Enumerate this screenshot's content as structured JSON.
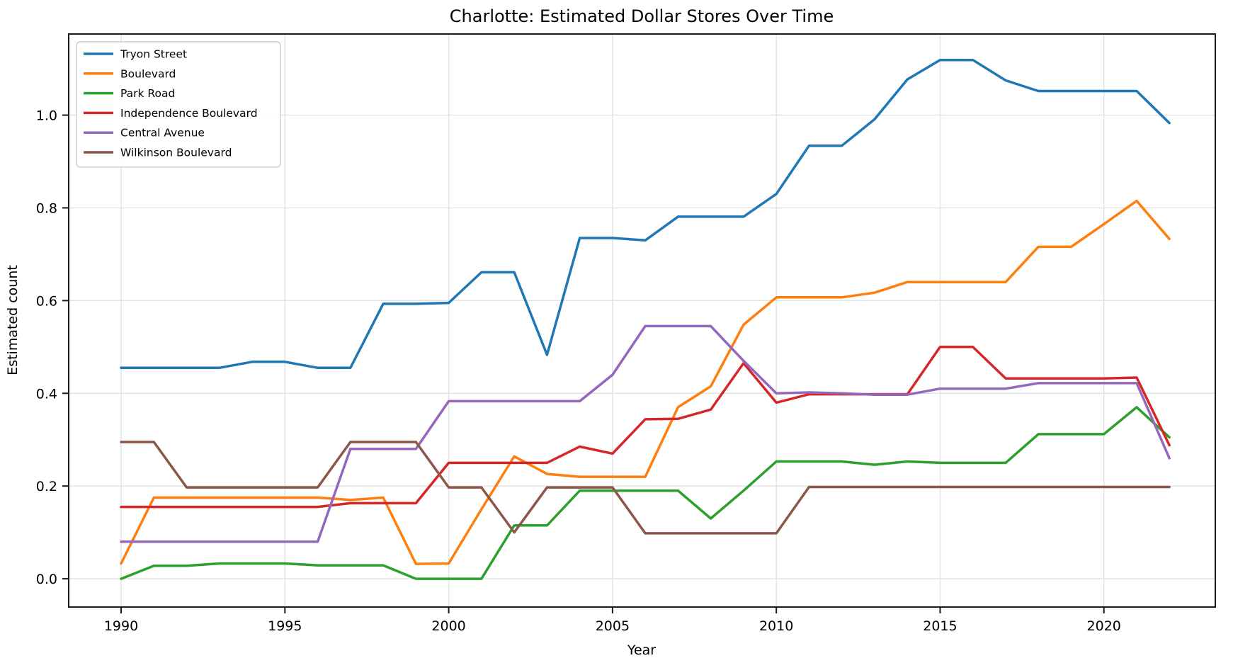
{
  "title": "Charlotte: Estimated Dollar Stores Over Time",
  "chart_data": {
    "type": "line",
    "title": "Charlotte: Estimated Dollar Stores Over Time",
    "xlabel": "Year",
    "ylabel": "Estimated count",
    "grid": true,
    "legend_position": "upper left",
    "x_range": [
      1988.4,
      2023.4
    ],
    "y_range": [
      -0.061,
      1.175
    ],
    "x_ticks": [
      1990,
      1995,
      2000,
      2005,
      2010,
      2015,
      2020
    ],
    "y_ticks": [
      0.0,
      0.2,
      0.4,
      0.6,
      0.8,
      1.0
    ],
    "x": [
      1990,
      1991,
      1992,
      1993,
      1994,
      1995,
      1996,
      1997,
      1998,
      1999,
      2000,
      2001,
      2002,
      2003,
      2004,
      2005,
      2006,
      2007,
      2008,
      2009,
      2010,
      2011,
      2012,
      2013,
      2014,
      2015,
      2016,
      2017,
      2018,
      2019,
      2020,
      2021,
      2022
    ],
    "series": [
      {
        "name": "Tryon Street",
        "color": "#1f77b4",
        "values": [
          0.455,
          0.455,
          0.455,
          0.455,
          0.468,
          0.468,
          0.455,
          0.455,
          0.593,
          0.593,
          0.595,
          0.661,
          0.661,
          0.483,
          0.735,
          0.735,
          0.73,
          0.781,
          0.781,
          0.781,
          0.83,
          0.934,
          0.934,
          0.991,
          1.077,
          1.119,
          1.119,
          1.075,
          1.052,
          1.052,
          1.052,
          1.052,
          0.983
        ]
      },
      {
        "name": "Boulevard",
        "color": "#ff7f0e",
        "values": [
          0.033,
          0.175,
          0.175,
          0.175,
          0.175,
          0.175,
          0.175,
          0.17,
          0.175,
          0.032,
          0.033,
          0.15,
          0.264,
          0.226,
          0.22,
          0.22,
          0.22,
          0.37,
          0.415,
          0.548,
          0.607,
          0.607,
          0.607,
          0.617,
          0.64,
          0.64,
          0.64,
          0.64,
          0.716,
          0.716,
          0.765,
          0.815,
          0.733
        ]
      },
      {
        "name": "Park Road",
        "color": "#2ca02c",
        "values": [
          0.0,
          0.028,
          0.028,
          0.033,
          0.033,
          0.033,
          0.029,
          0.029,
          0.029,
          0.0,
          0.0,
          0.0,
          0.115,
          0.115,
          0.19,
          0.19,
          0.19,
          0.19,
          0.13,
          0.19,
          0.253,
          0.253,
          0.253,
          0.246,
          0.253,
          0.25,
          0.25,
          0.25,
          0.312,
          0.312,
          0.312,
          0.37,
          0.305
        ]
      },
      {
        "name": "Independence Boulevard",
        "color": "#d62728",
        "values": [
          0.155,
          0.155,
          0.155,
          0.155,
          0.155,
          0.155,
          0.155,
          0.163,
          0.163,
          0.163,
          0.25,
          0.25,
          0.25,
          0.25,
          0.285,
          0.27,
          0.344,
          0.345,
          0.365,
          0.465,
          0.38,
          0.398,
          0.398,
          0.398,
          0.398,
          0.5,
          0.5,
          0.432,
          0.432,
          0.432,
          0.432,
          0.434,
          0.288
        ]
      },
      {
        "name": "Central Avenue",
        "color": "#9467bd",
        "values": [
          0.08,
          0.08,
          0.08,
          0.08,
          0.08,
          0.08,
          0.08,
          0.28,
          0.28,
          0.28,
          0.383,
          0.383,
          0.383,
          0.383,
          0.383,
          0.44,
          0.545,
          0.545,
          0.545,
          0.47,
          0.4,
          0.402,
          0.4,
          0.397,
          0.397,
          0.41,
          0.41,
          0.41,
          0.422,
          0.422,
          0.422,
          0.422,
          0.26
        ]
      },
      {
        "name": "Wilkinson Boulevard",
        "color": "#8c564b",
        "values": [
          0.295,
          0.295,
          0.197,
          0.197,
          0.197,
          0.197,
          0.197,
          0.295,
          0.295,
          0.295,
          0.197,
          0.197,
          0.1,
          0.197,
          0.197,
          0.197,
          0.098,
          0.098,
          0.098,
          0.098,
          0.098,
          0.198,
          0.198,
          0.198,
          0.198,
          0.198,
          0.198,
          0.198,
          0.198,
          0.198,
          0.198,
          0.198,
          0.198
        ]
      }
    ],
    "style": {
      "grid_color": "#e2e2e2",
      "spine_color": "#1a1a1a",
      "legend_border": "#cccccc",
      "line_width": 3.5
    }
  }
}
